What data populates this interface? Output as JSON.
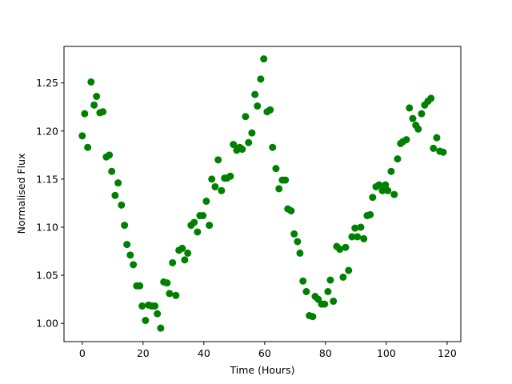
{
  "chart_data": {
    "type": "scatter",
    "x_label": "Time (Hours)",
    "y_label": "Normalised Flux",
    "color": "#008000",
    "xlim": [
      -6,
      124.5
    ],
    "ylim": [
      0.981,
      1.288
    ],
    "xticks": [
      0,
      20,
      40,
      60,
      80,
      100,
      120
    ],
    "yticks": [
      {
        "value": 1,
        "label": "1.00"
      },
      1.05,
      {
        "value": 1.1,
        "label": "1.10"
      },
      1.15,
      {
        "value": 1.2,
        "label": "1.20"
      },
      1.25
    ],
    "x": [
      0,
      0.8,
      1.8,
      2.9,
      3.9,
      4.7,
      5.8,
      6.8,
      7.9,
      8.9,
      9.7,
      10.8,
      11.8,
      12.9,
      13.9,
      14.7,
      15.8,
      16.8,
      17.9,
      18.9,
      19.7,
      20.8,
      21.8,
      22.9,
      23.9,
      24.7,
      25.8,
      26.8,
      27.9,
      28.7,
      29.7,
      30.8,
      31.8,
      32.9,
      33.7,
      34.7,
      35.8,
      36.8,
      37.9,
      38.7,
      39.7,
      40.8,
      41.8,
      42.6,
      43.7,
      44.7,
      45.8,
      46.8,
      47.6,
      48.7,
      49.7,
      50.8,
      51.8,
      52.6,
      53.7,
      54.7,
      55.8,
      56.8,
      57.6,
      58.7,
      59.7,
      60.8,
      61.8,
      62.6,
      63.7,
      64.7,
      65.8,
      66.8,
      67.6,
      68.7,
      69.7,
      70.8,
      71.6,
      72.6,
      73.7,
      74.7,
      75.8,
      76.6,
      77.6,
      78.7,
      79.7,
      80.8,
      81.6,
      82.6,
      83.7,
      84.7,
      85.8,
      86.6,
      87.6,
      88.7,
      89.7,
      90.5,
      91.6,
      92.6,
      93.7,
      94.7,
      95.5,
      96.6,
      97.6,
      98.7,
      99.7,
      100.5,
      101.6,
      102.6,
      103.7,
      104.7,
      105.5,
      106.6,
      107.6,
      108.7,
      109.7,
      110.5,
      111.6,
      112.6,
      113.7,
      114.7,
      115.5,
      116.6,
      117.6,
      118.7
    ],
    "y": [
      1.195,
      1.218,
      1.183,
      1.251,
      1.227,
      1.236,
      1.219,
      1.22,
      1.173,
      1.175,
      1.158,
      1.133,
      1.146,
      1.123,
      1.102,
      1.082,
      1.071,
      1.061,
      1.039,
      1.039,
      1.018,
      1.003,
      1.019,
      1.018,
      1.018,
      1.01,
      0.995,
      1.043,
      1.042,
      1.031,
      1.063,
      1.029,
      1.076,
      1.078,
      1.066,
      1.073,
      1.102,
      1.105,
      1.095,
      1.112,
      1.112,
      1.127,
      1.102,
      1.15,
      1.142,
      1.17,
      1.138,
      1.151,
      1.151,
      1.153,
      1.186,
      1.18,
      1.183,
      1.181,
      1.215,
      1.188,
      1.198,
      1.238,
      1.226,
      1.254,
      1.275,
      1.22,
      1.222,
      1.183,
      1.161,
      1.14,
      1.149,
      1.149,
      1.119,
      1.117,
      1.093,
      1.085,
      1.073,
      1.044,
      1.033,
      1.008,
      1.007,
      1.028,
      1.025,
      1.02,
      1.02,
      1.033,
      1.045,
      1.023,
      1.08,
      1.077,
      1.048,
      1.079,
      1.055,
      1.09,
      1.099,
      1.09,
      1.1,
      1.088,
      1.112,
      1.113,
      1.131,
      1.142,
      1.144,
      1.138,
      1.144,
      1.138,
      1.158,
      1.134,
      1.171,
      1.187,
      1.189,
      1.191,
      1.224,
      1.213,
      1.206,
      1.202,
      1.218,
      1.227,
      1.231,
      1.234,
      1.182,
      1.193,
      1.179,
      1.178
    ]
  }
}
